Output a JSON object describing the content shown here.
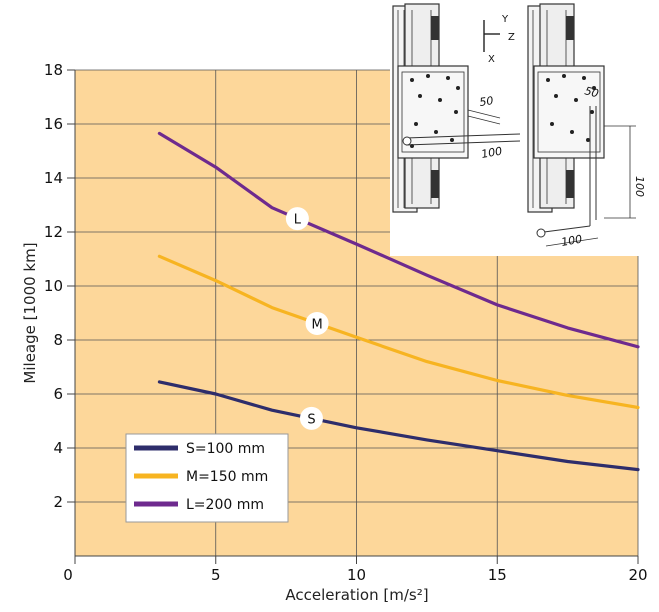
{
  "chart_data": {
    "type": "line",
    "xlabel": "Acceleration [m/s²]",
    "ylabel": "Mileage [1000 km]",
    "xlim": [
      0,
      20
    ],
    "ylim": [
      0,
      18
    ],
    "x_ticks": [
      0,
      5,
      10,
      15,
      20
    ],
    "y_ticks": [
      2,
      4,
      6,
      8,
      10,
      12,
      14,
      16,
      18
    ],
    "grid": true,
    "legend_position": "bottom-left",
    "plot_background": "#fdd79a",
    "series": [
      {
        "name": "S=100 mm",
        "curve_label": "S",
        "color": "#2e2d6b",
        "x": [
          3,
          5,
          7,
          10,
          12.5,
          15,
          17.5,
          20
        ],
        "y": [
          6.45,
          6.0,
          5.4,
          4.75,
          4.3,
          3.9,
          3.5,
          3.2
        ],
        "label_at_x": 8.4
      },
      {
        "name": "M=150 mm",
        "curve_label": "M",
        "color": "#f7b421",
        "x": [
          3,
          5,
          7,
          10,
          12.5,
          15,
          17.5,
          20
        ],
        "y": [
          11.1,
          10.2,
          9.2,
          8.1,
          7.2,
          6.5,
          5.95,
          5.5
        ],
        "label_at_x": 8.6
      },
      {
        "name": "L=200 mm",
        "curve_label": "L",
        "color": "#6e2a8e",
        "x": [
          3,
          5,
          7,
          10,
          12.5,
          15,
          17.5,
          20
        ],
        "y": [
          15.65,
          14.4,
          12.9,
          11.55,
          10.4,
          9.3,
          8.45,
          7.75
        ],
        "label_at_x": 7.9
      }
    ]
  },
  "inset": {
    "axis_labels": [
      "Y",
      "Z",
      "X"
    ],
    "dim_labels": [
      "50",
      "100",
      "50",
      "100",
      "100"
    ]
  }
}
